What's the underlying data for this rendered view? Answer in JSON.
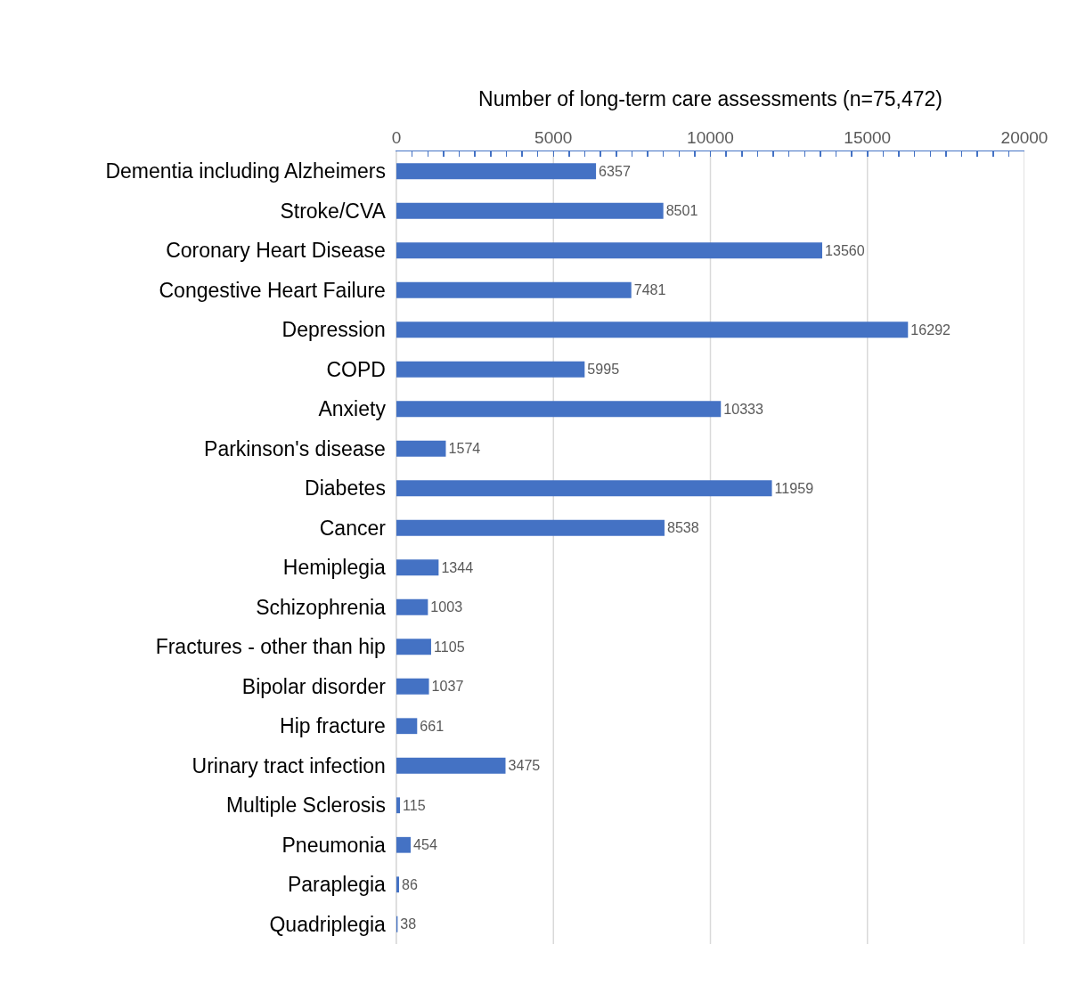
{
  "chart_data": {
    "type": "bar",
    "orientation": "horizontal",
    "xlabel": "Number of long-term care assessments (n=75,472)",
    "categories": [
      "Dementia including Alzheimers",
      "Stroke/CVA",
      "Coronary Heart Disease",
      "Congestive Heart Failure",
      "Depression",
      "COPD",
      "Anxiety",
      "Parkinson's disease",
      "Diabetes",
      "Cancer",
      "Hemiplegia",
      "Schizophrenia",
      "Fractures - other than hip",
      "Bipolar disorder",
      "Hip fracture",
      "Urinary tract infection",
      "Multiple Sclerosis",
      "Pneumonia",
      "Paraplegia",
      "Quadriplegia"
    ],
    "values": [
      6357,
      8501,
      13560,
      7481,
      16292,
      5995,
      10333,
      1574,
      11959,
      8538,
      1344,
      1003,
      1105,
      1037,
      661,
      3475,
      115,
      454,
      86,
      38
    ],
    "color": "#4472c4",
    "data_labels": true,
    "grid": "x",
    "legend": false,
    "xlim": [
      0,
      20000
    ],
    "xticks": [
      0,
      {
        "value": 500,
        "label": null
      },
      {
        "value": 1000,
        "label": null
      },
      {
        "value": 1500,
        "label": null
      },
      {
        "value": 2000,
        "label": null
      },
      {
        "value": 2500,
        "label": null
      },
      {
        "value": 3000,
        "label": null
      },
      {
        "value": 3500,
        "label": null
      },
      {
        "value": 4000,
        "label": null
      },
      {
        "value": 4500,
        "label": null
      },
      5000,
      {
        "value": 5500,
        "label": null
      },
      {
        "value": 6000,
        "label": null
      },
      {
        "value": 6500,
        "label": null
      },
      {
        "value": 7000,
        "label": null
      },
      {
        "value": 7500,
        "label": null
      },
      {
        "value": 8000,
        "label": null
      },
      {
        "value": 8500,
        "label": null
      },
      {
        "value": 9000,
        "label": null
      },
      {
        "value": 9500,
        "label": null
      },
      10000,
      {
        "value": 10500,
        "label": null
      },
      {
        "value": 11000,
        "label": null
      },
      {
        "value": 11500,
        "label": null
      },
      {
        "value": 12000,
        "label": null
      },
      {
        "value": 12500,
        "label": null
      },
      {
        "value": 13000,
        "label": null
      },
      {
        "value": 13500,
        "label": null
      },
      {
        "value": 14000,
        "label": null
      },
      {
        "value": 14500,
        "label": null
      },
      15000,
      {
        "value": 15500,
        "label": null
      },
      {
        "value": 16000,
        "label": null
      },
      {
        "value": 16500,
        "label": null
      },
      {
        "value": 17000,
        "label": null
      },
      {
        "value": 17500,
        "label": null
      },
      {
        "value": 18000,
        "label": null
      },
      {
        "value": 18500,
        "label": null
      },
      {
        "value": 19000,
        "label": null
      },
      {
        "value": 19500,
        "label": null
      },
      20000
    ]
  }
}
